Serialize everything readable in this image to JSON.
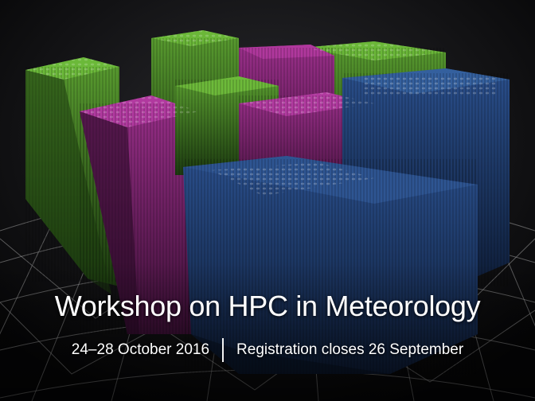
{
  "banner": {
    "title": "Workshop on HPC in Meteorology",
    "dates": "24–28 October 2016",
    "registration": "Registration closes 26 September"
  },
  "colors": {
    "background": "#0a0a0c",
    "globe_mesh": "#8a8a8a",
    "bar_green": "#4f8f2a",
    "bar_magenta": "#8c2a7c",
    "bar_blue": "#1e3f73",
    "text": "#ffffff"
  },
  "illustration": {
    "description_icon": "partitioned-3d-bar-grid-on-globe"
  }
}
